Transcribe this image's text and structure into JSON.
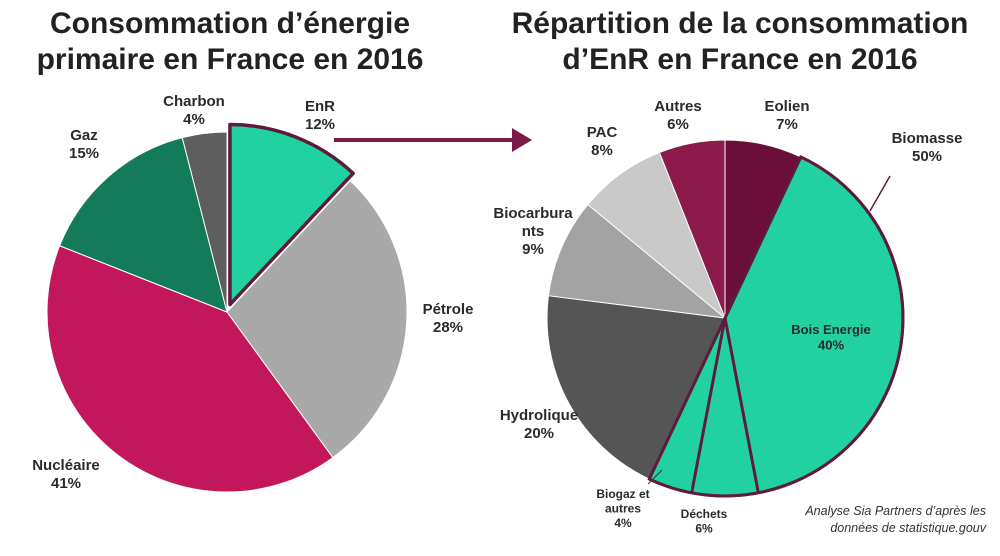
{
  "titles": {
    "left": "Consommation d’énergie primaire en France en 2016",
    "right": "Répartition de la consommation d’EnR en France en 2016"
  },
  "source": {
    "line1": "Analyse Sia Partners d’après les",
    "line2": "données de statistique.gouv"
  },
  "colors": {
    "enr_highlight": "#22d1a0",
    "border_accent": "#5e1b3b",
    "arrow": "#7a1b47"
  },
  "chart_data": [
    {
      "type": "pie",
      "title": "Consommation d’énergie primaire en France en 2016",
      "slices": [
        {
          "label": "EnR",
          "value": 12,
          "value_label": "12%",
          "color": "#22d1a0",
          "exploded": true
        },
        {
          "label": "Pétrole",
          "value": 28,
          "value_label": "28%",
          "color": "#a9a9a9"
        },
        {
          "label": "Nucléaire",
          "value": 41,
          "value_label": "41%",
          "color": "#c2185b"
        },
        {
          "label": "Gaz",
          "value": 15,
          "value_label": "15%",
          "color": "#137a5a"
        },
        {
          "label": "Charbon",
          "value": 4,
          "value_label": "4%",
          "color": "#5e5e5e"
        }
      ]
    },
    {
      "type": "pie",
      "title": "Répartition de la consommation d’EnR en France en 2016",
      "slices": [
        {
          "label": "Eolien",
          "value": 7,
          "value_label": "7%",
          "color": "#6b0f3a"
        },
        {
          "label": "Biomasse",
          "value": 50,
          "value_label": "50%",
          "color": "#22d1a0",
          "group": true
        },
        {
          "label": "Hydrolique",
          "value": 20,
          "value_label": "20%",
          "color": "#555555"
        },
        {
          "label": "Biocarburants",
          "label_lines": [
            "Biocarbura",
            "nts"
          ],
          "value": 9,
          "value_label": "9%",
          "color": "#a3a3a3"
        },
        {
          "label": "PAC",
          "value": 8,
          "value_label": "8%",
          "color": "#c9c9c9"
        },
        {
          "label": "Autres",
          "value": 6,
          "value_label": "6%",
          "color": "#8c1a4a"
        }
      ],
      "biomasse_breakdown": [
        {
          "label": "Bois Energie",
          "value": 40,
          "value_label": "40%"
        },
        {
          "label": "Déchets",
          "value": 6,
          "value_label": "6%"
        },
        {
          "label": "Biogaz et autres",
          "label_lines": [
            "Biogaz et",
            "autres"
          ],
          "value": 4,
          "value_label": "4%"
        }
      ]
    }
  ]
}
